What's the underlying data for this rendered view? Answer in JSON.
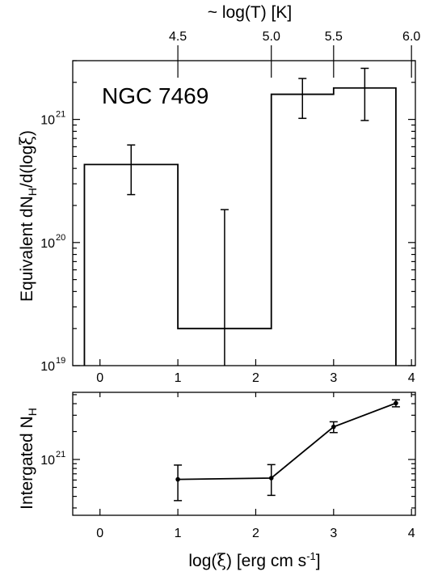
{
  "chart_data": [
    {
      "type": "line",
      "panel": "top",
      "annotation": "NGC 7469",
      "xlabel_top": "~ log(T) [K]",
      "ylabel": "Equivalent dN_H/d(logξ)",
      "xlim": [
        -0.35,
        4.05
      ],
      "ylim": [
        1e+19,
        3e+21
      ],
      "yscale": "log",
      "x_ticks": [
        0,
        1,
        2,
        3,
        4
      ],
      "x_tick_labels": [
        "0",
        "1",
        "2",
        "3",
        "4"
      ],
      "top_ticks": [
        {
          "x": 1.0,
          "label": "4.5"
        },
        {
          "x": 2.2,
          "label": "5.0"
        },
        {
          "x": 3.0,
          "label": "5.5"
        },
        {
          "x": 4.0,
          "label": "6.0"
        }
      ],
      "y_ticks": [
        {
          "value": 1e+19,
          "base": "10",
          "exp": "19"
        },
        {
          "value": 1e+20,
          "base": "10",
          "exp": "20"
        },
        {
          "value": 1e+21,
          "base": "10",
          "exp": "21"
        }
      ],
      "bins": [
        {
          "x0": -0.2,
          "x1": 1.0,
          "y": 4.3e+20
        },
        {
          "x0": 1.0,
          "x1": 2.2,
          "y": 2e+19
        },
        {
          "x0": 2.2,
          "x1": 3.0,
          "y": 1.6e+21
        },
        {
          "x0": 3.0,
          "x1": 3.8,
          "y": 1.8e+21
        }
      ],
      "error_bars": [
        {
          "x": 0.4,
          "y": 4.3e+20,
          "lo": 2.45e+20,
          "hi": 6.2e+20
        },
        {
          "x": 1.6,
          "y": 2e+19,
          "lo": 1e+19,
          "hi": 1.85e+20
        },
        {
          "x": 2.6,
          "y": 1.6e+21,
          "lo": 1.02e+21,
          "hi": 2.15e+21
        },
        {
          "x": 3.4,
          "y": 1.8e+21,
          "lo": 9.8e+20,
          "hi": 2.6e+21
        }
      ],
      "grid": false
    },
    {
      "type": "line",
      "panel": "bottom",
      "xlabel": "log(ξ) [erg cm s^-1]",
      "ylabel": "Intergated N_H",
      "xlim": [
        -0.35,
        4.05
      ],
      "yscale": "log",
      "x_ticks": [
        0,
        1,
        2,
        3,
        4
      ],
      "x_tick_labels": [
        "0",
        "1",
        "2",
        "3",
        "4"
      ],
      "y_ticks": [
        {
          "value": 1e+21,
          "base": "10",
          "exp": "21"
        }
      ],
      "points": [
        {
          "x": 1.0,
          "y": 6.1e+20,
          "lo": 3.6e+20,
          "hi": 8.7e+20
        },
        {
          "x": 2.2,
          "y": 6.3e+20,
          "lo": 4.1e+20,
          "hi": 8.8e+20
        },
        {
          "x": 3.0,
          "y": 2.25e+21,
          "lo": 1.95e+21,
          "hi": 2.55e+21
        },
        {
          "x": 3.8,
          "y": 4.05e+21,
          "lo": 3.7e+21,
          "hi": 4.4e+21
        }
      ],
      "grid": false
    }
  ]
}
